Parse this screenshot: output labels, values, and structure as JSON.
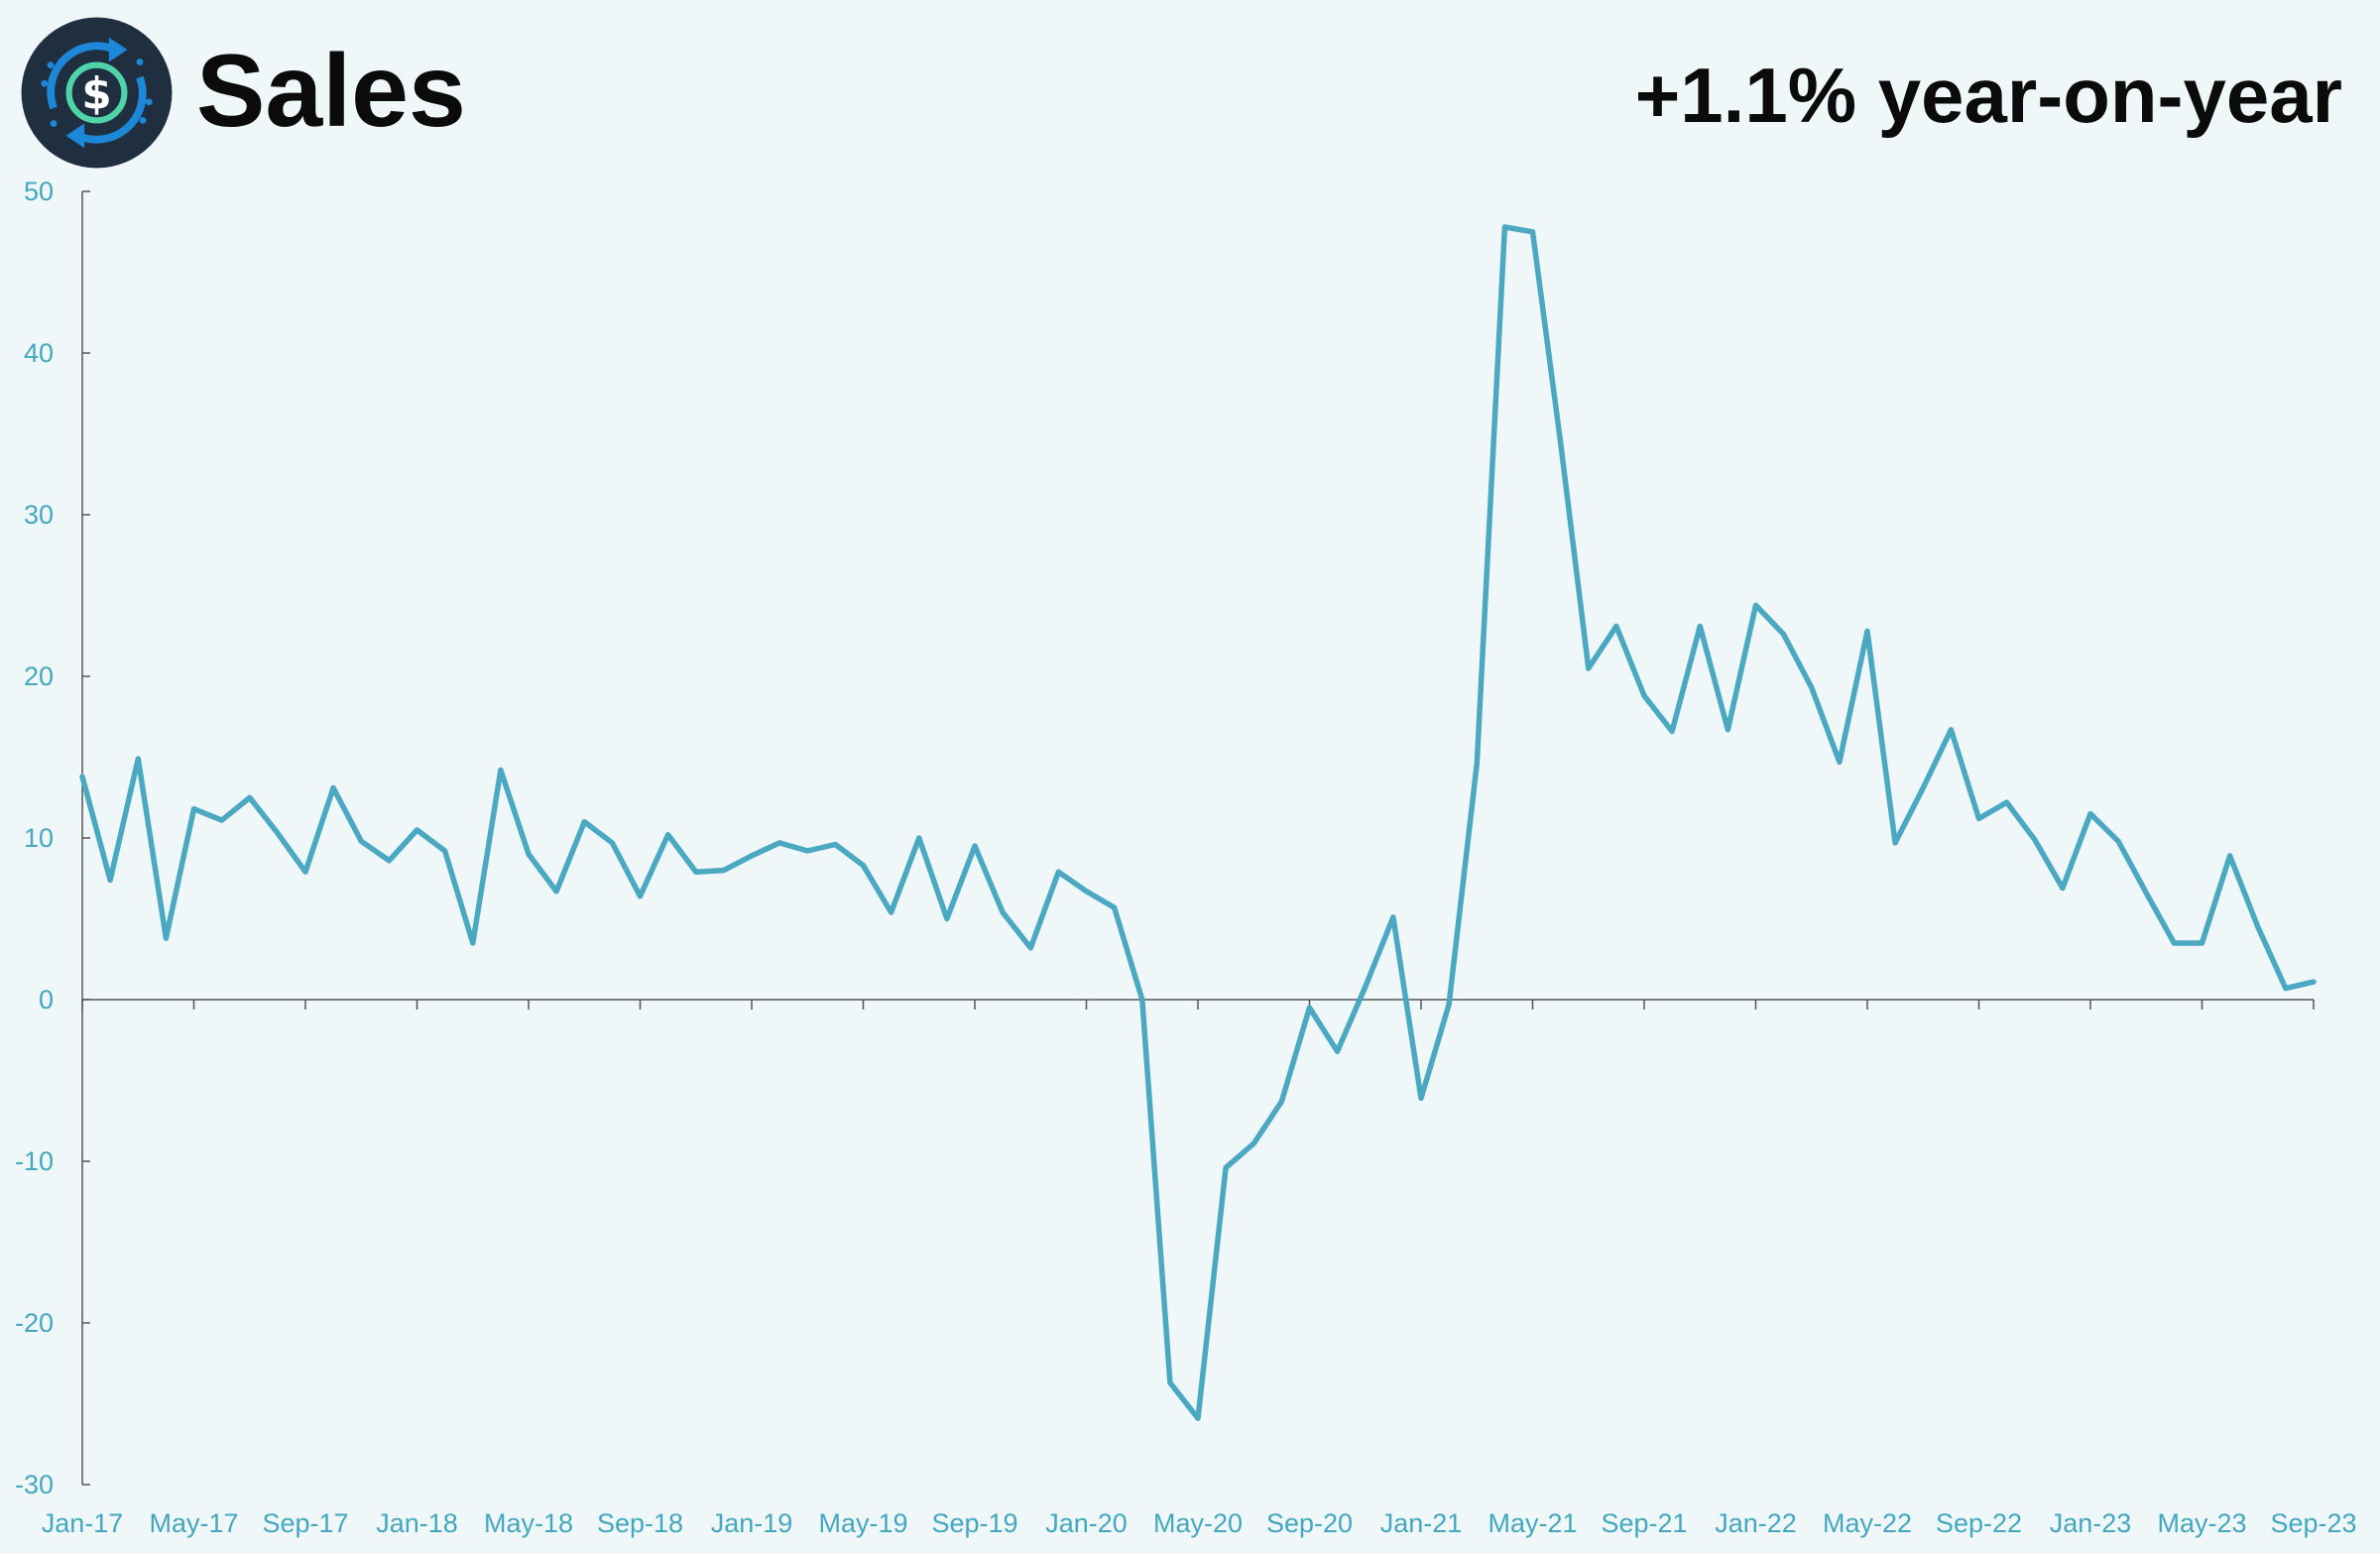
{
  "header": {
    "title": "Sales",
    "subtitle": "+1.1% year-on-year",
    "logo_icon": "dollar-cycle-icon"
  },
  "colors": {
    "background": "#eff7f8",
    "line": "#4aa8c3",
    "tick_text": "#43a7bf",
    "axis": "#555555",
    "logo_bg": "#1f2f40",
    "logo_arrow": "#1e88d8",
    "logo_ring": "#4fd3a8"
  },
  "chart_data": {
    "type": "line",
    "title": "Sales",
    "subtitle": "+1.1% year-on-year",
    "xlabel": "",
    "ylabel": "",
    "ylim": [
      -30,
      50
    ],
    "yticks": [
      -30,
      -20,
      -10,
      0,
      10,
      20,
      30,
      40,
      50
    ],
    "xtick_labels": [
      "Jan-17",
      "May-17",
      "Sep-17",
      "Jan-18",
      "May-18",
      "Sep-18",
      "Jan-19",
      "May-19",
      "Sep-19",
      "Jan-20",
      "May-20",
      "Sep-20",
      "Jan-21",
      "May-21",
      "Sep-21",
      "Jan-22",
      "May-22",
      "Sep-22",
      "Jan-23",
      "May-23",
      "Sep-23"
    ],
    "grid": false,
    "legend": "none",
    "x": [
      "Jan-17",
      "Feb-17",
      "Mar-17",
      "Apr-17",
      "May-17",
      "Jun-17",
      "Jul-17",
      "Aug-17",
      "Sep-17",
      "Oct-17",
      "Nov-17",
      "Dec-17",
      "Jan-18",
      "Feb-18",
      "Mar-18",
      "Apr-18",
      "May-18",
      "Jun-18",
      "Jul-18",
      "Aug-18",
      "Sep-18",
      "Oct-18",
      "Nov-18",
      "Dec-18",
      "Jan-19",
      "Feb-19",
      "Mar-19",
      "Apr-19",
      "May-19",
      "Jun-19",
      "Jul-19",
      "Aug-19",
      "Sep-19",
      "Oct-19",
      "Nov-19",
      "Dec-19",
      "Jan-20",
      "Feb-20",
      "Mar-20",
      "Apr-20",
      "May-20",
      "Jun-20",
      "Jul-20",
      "Aug-20",
      "Sep-20",
      "Oct-20",
      "Nov-20",
      "Dec-20",
      "Jan-21",
      "Feb-21",
      "Mar-21",
      "Apr-21",
      "May-21",
      "Jun-21",
      "Jul-21",
      "Aug-21",
      "Sep-21",
      "Oct-21",
      "Nov-21",
      "Dec-21",
      "Jan-22",
      "Feb-22",
      "Mar-22",
      "Apr-22",
      "May-22",
      "Jun-22",
      "Jul-22",
      "Aug-22",
      "Sep-22",
      "Oct-22",
      "Nov-22",
      "Dec-22",
      "Jan-23",
      "Feb-23",
      "Mar-23",
      "Apr-23",
      "May-23",
      "Jun-23",
      "Jul-23",
      "Aug-23",
      "Sep-23"
    ],
    "series": [
      {
        "values": [
          13.8,
          7.4,
          14.9,
          3.8,
          11.8,
          11.1,
          12.5,
          10.3,
          7.9,
          13.1,
          9.8,
          8.6,
          10.5,
          9.2,
          3.5,
          14.2,
          9.0,
          6.7,
          11.0,
          9.7,
          6.4,
          10.2,
          7.9,
          8.0,
          8.9,
          9.7,
          9.2,
          9.6,
          8.3,
          5.4,
          10.0,
          5.0,
          9.5,
          5.4,
          3.2,
          7.9,
          6.7,
          5.7,
          0.0,
          -23.7,
          -25.9,
          -10.4,
          -8.9,
          -6.3,
          -0.5,
          -3.2,
          0.8,
          5.1,
          -6.1,
          -0.3,
          14.6,
          47.8,
          47.5,
          34.5,
          20.5,
          23.1,
          18.8,
          16.6,
          23.1,
          16.7,
          24.4,
          22.6,
          19.3,
          14.7,
          22.8,
          9.7,
          13.1,
          16.7,
          11.2,
          12.2,
          9.9,
          6.9,
          11.5,
          9.8,
          6.6,
          3.5,
          3.5,
          8.9,
          4.5,
          0.7,
          1.1
        ]
      }
    ]
  }
}
